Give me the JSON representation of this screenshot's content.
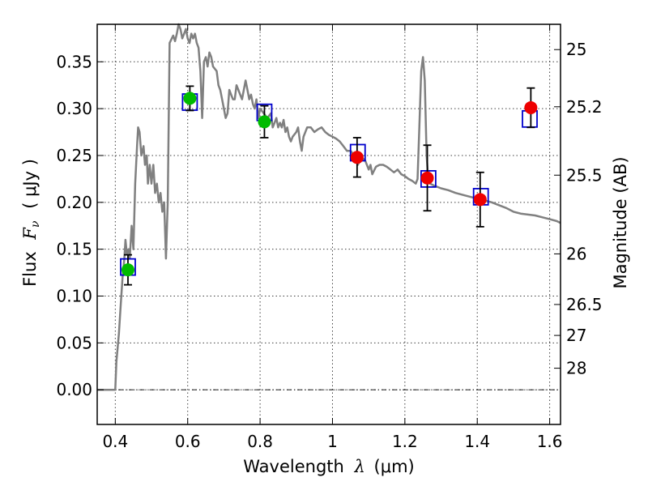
{
  "chart_data": {
    "type": "scatter",
    "xlabel_text": "Wavelength",
    "xlabel_symbol": "λ",
    "xlabel_unit": "(μm)",
    "ylabel_text": "Flux",
    "ylabel_symbol": "F",
    "ylabel_subscript": "ν",
    "ylabel_unit": "( μJy )",
    "y2label": "Magnitude (AB)",
    "xlim": [
      0.35,
      1.63
    ],
    "ylim": [
      -0.037,
      0.39
    ],
    "grid": true,
    "x_ticks": [
      0.4,
      0.6,
      0.8,
      1.0,
      1.2,
      1.4,
      1.6
    ],
    "x_tick_labels": [
      "0.4",
      "0.6",
      "0.8",
      "1",
      "1.2",
      "1.4",
      "1.6"
    ],
    "y_ticks": [
      0.0,
      0.05,
      0.1,
      0.15,
      0.2,
      0.25,
      0.3,
      0.35
    ],
    "y_tick_labels": [
      "0.00",
      "0.05",
      "0.10",
      "0.15",
      "0.20",
      "0.25",
      "0.30",
      "0.35"
    ],
    "y2_ticks": [
      {
        "label": "25",
        "flux": 0.363
      },
      {
        "label": "25.2",
        "flux": 0.302
      },
      {
        "label": "25.5",
        "flux": 0.229
      },
      {
        "label": "26",
        "flux": 0.145
      },
      {
        "label": "26.5",
        "flux": 0.091
      },
      {
        "label": "27",
        "flux": 0.058
      },
      {
        "label": "28",
        "flux": 0.023
      }
    ],
    "colors": {
      "model": "#808080",
      "model_box": "#0000cc",
      "green": "#00bb00",
      "red": "#ee0000",
      "errorbar": "#000000",
      "zero_line": "#000000"
    },
    "model_spectrum": [
      [
        0.35,
        0.0
      ],
      [
        0.39,
        0.0
      ],
      [
        0.4,
        0.0
      ],
      [
        0.403,
        0.03
      ],
      [
        0.41,
        0.06
      ],
      [
        0.415,
        0.09
      ],
      [
        0.42,
        0.12
      ],
      [
        0.425,
        0.14
      ],
      [
        0.428,
        0.16
      ],
      [
        0.432,
        0.145
      ],
      [
        0.437,
        0.15
      ],
      [
        0.44,
        0.14
      ],
      [
        0.445,
        0.175
      ],
      [
        0.45,
        0.15
      ],
      [
        0.455,
        0.22
      ],
      [
        0.46,
        0.26
      ],
      [
        0.463,
        0.28
      ],
      [
        0.467,
        0.275
      ],
      [
        0.472,
        0.25
      ],
      [
        0.478,
        0.26
      ],
      [
        0.482,
        0.24
      ],
      [
        0.487,
        0.25
      ],
      [
        0.49,
        0.22
      ],
      [
        0.495,
        0.24
      ],
      [
        0.5,
        0.22
      ],
      [
        0.505,
        0.24
      ],
      [
        0.51,
        0.21
      ],
      [
        0.515,
        0.22
      ],
      [
        0.52,
        0.2
      ],
      [
        0.525,
        0.21
      ],
      [
        0.53,
        0.19
      ],
      [
        0.535,
        0.2
      ],
      [
        0.54,
        0.14
      ],
      [
        0.545,
        0.2
      ],
      [
        0.55,
        0.37
      ],
      [
        0.56,
        0.378
      ],
      [
        0.565,
        0.372
      ],
      [
        0.57,
        0.38
      ],
      [
        0.575,
        0.39
      ],
      [
        0.58,
        0.385
      ],
      [
        0.585,
        0.375
      ],
      [
        0.59,
        0.38
      ],
      [
        0.595,
        0.385
      ],
      [
        0.6,
        0.375
      ],
      [
        0.605,
        0.37
      ],
      [
        0.61,
        0.38
      ],
      [
        0.615,
        0.375
      ],
      [
        0.62,
        0.38
      ],
      [
        0.625,
        0.37
      ],
      [
        0.63,
        0.365
      ],
      [
        0.635,
        0.34
      ],
      [
        0.64,
        0.29
      ],
      [
        0.645,
        0.35
      ],
      [
        0.65,
        0.355
      ],
      [
        0.655,
        0.345
      ],
      [
        0.66,
        0.36
      ],
      [
        0.665,
        0.355
      ],
      [
        0.67,
        0.345
      ],
      [
        0.68,
        0.34
      ],
      [
        0.685,
        0.325
      ],
      [
        0.69,
        0.32
      ],
      [
        0.695,
        0.31
      ],
      [
        0.7,
        0.3
      ],
      [
        0.705,
        0.29
      ],
      [
        0.71,
        0.295
      ],
      [
        0.715,
        0.32
      ],
      [
        0.72,
        0.315
      ],
      [
        0.725,
        0.31
      ],
      [
        0.73,
        0.31
      ],
      [
        0.735,
        0.325
      ],
      [
        0.74,
        0.32
      ],
      [
        0.745,
        0.315
      ],
      [
        0.75,
        0.31
      ],
      [
        0.755,
        0.32
      ],
      [
        0.76,
        0.33
      ],
      [
        0.765,
        0.32
      ],
      [
        0.77,
        0.31
      ],
      [
        0.775,
        0.315
      ],
      [
        0.78,
        0.305
      ],
      [
        0.785,
        0.3
      ],
      [
        0.79,
        0.31
      ],
      [
        0.795,
        0.29
      ],
      [
        0.8,
        0.3
      ],
      [
        0.81,
        0.295
      ],
      [
        0.82,
        0.29
      ],
      [
        0.83,
        0.295
      ],
      [
        0.835,
        0.28
      ],
      [
        0.84,
        0.285
      ],
      [
        0.845,
        0.29
      ],
      [
        0.85,
        0.28
      ],
      [
        0.855,
        0.285
      ],
      [
        0.86,
        0.28
      ],
      [
        0.865,
        0.288
      ],
      [
        0.87,
        0.275
      ],
      [
        0.875,
        0.28
      ],
      [
        0.88,
        0.27
      ],
      [
        0.885,
        0.265
      ],
      [
        0.89,
        0.27
      ],
      [
        0.9,
        0.275
      ],
      [
        0.905,
        0.28
      ],
      [
        0.91,
        0.265
      ],
      [
        0.915,
        0.255
      ],
      [
        0.92,
        0.27
      ],
      [
        0.925,
        0.275
      ],
      [
        0.93,
        0.28
      ],
      [
        0.94,
        0.28
      ],
      [
        0.95,
        0.275
      ],
      [
        0.96,
        0.278
      ],
      [
        0.97,
        0.28
      ],
      [
        0.98,
        0.275
      ],
      [
        0.99,
        0.272
      ],
      [
        1.0,
        0.27
      ],
      [
        1.01,
        0.268
      ],
      [
        1.02,
        0.265
      ],
      [
        1.03,
        0.26
      ],
      [
        1.04,
        0.255
      ],
      [
        1.05,
        0.255
      ],
      [
        1.06,
        0.25
      ],
      [
        1.07,
        0.24
      ],
      [
        1.08,
        0.248
      ],
      [
        1.09,
        0.245
      ],
      [
        1.1,
        0.235
      ],
      [
        1.105,
        0.24
      ],
      [
        1.11,
        0.23
      ],
      [
        1.12,
        0.238
      ],
      [
        1.13,
        0.24
      ],
      [
        1.14,
        0.24
      ],
      [
        1.15,
        0.238
      ],
      [
        1.16,
        0.235
      ],
      [
        1.17,
        0.232
      ],
      [
        1.18,
        0.235
      ],
      [
        1.19,
        0.23
      ],
      [
        1.2,
        0.228
      ],
      [
        1.21,
        0.225
      ],
      [
        1.22,
        0.223
      ],
      [
        1.23,
        0.22
      ],
      [
        1.235,
        0.225
      ],
      [
        1.24,
        0.28
      ],
      [
        1.245,
        0.34
      ],
      [
        1.25,
        0.355
      ],
      [
        1.255,
        0.33
      ],
      [
        1.26,
        0.25
      ],
      [
        1.265,
        0.222
      ],
      [
        1.27,
        0.22
      ],
      [
        1.28,
        0.218
      ],
      [
        1.3,
        0.215
      ],
      [
        1.32,
        0.213
      ],
      [
        1.34,
        0.21
      ],
      [
        1.36,
        0.208
      ],
      [
        1.38,
        0.206
      ],
      [
        1.4,
        0.204
      ],
      [
        1.42,
        0.202
      ],
      [
        1.44,
        0.2
      ],
      [
        1.46,
        0.197
      ],
      [
        1.48,
        0.194
      ],
      [
        1.5,
        0.19
      ],
      [
        1.52,
        0.188
      ],
      [
        1.54,
        0.187
      ],
      [
        1.56,
        0.186
      ],
      [
        1.58,
        0.184
      ],
      [
        1.6,
        0.182
      ],
      [
        1.62,
        0.18
      ],
      [
        1.63,
        0.178
      ]
    ],
    "model_boxes": [
      {
        "x": 0.435,
        "y": 0.131
      },
      {
        "x": 0.606,
        "y": 0.307
      },
      {
        "x": 0.812,
        "y": 0.296
      },
      {
        "x": 1.07,
        "y": 0.253
      },
      {
        "x": 1.265,
        "y": 0.225
      },
      {
        "x": 1.41,
        "y": 0.206
      },
      {
        "x": 1.545,
        "y": 0.289
      }
    ],
    "observed_points": [
      {
        "x": 0.435,
        "y": 0.128,
        "err": 0.016,
        "color": "green"
      },
      {
        "x": 0.606,
        "y": 0.311,
        "err": 0.013,
        "color": "green"
      },
      {
        "x": 0.812,
        "y": 0.286,
        "err": 0.017,
        "color": "green"
      },
      {
        "x": 1.068,
        "y": 0.248,
        "err": 0.021,
        "color": "red"
      },
      {
        "x": 1.262,
        "y": 0.226,
        "err": 0.035,
        "color": "red"
      },
      {
        "x": 1.408,
        "y": 0.203,
        "err": 0.029,
        "color": "red"
      },
      {
        "x": 1.548,
        "y": 0.301,
        "err": 0.021,
        "color": "red"
      }
    ]
  }
}
